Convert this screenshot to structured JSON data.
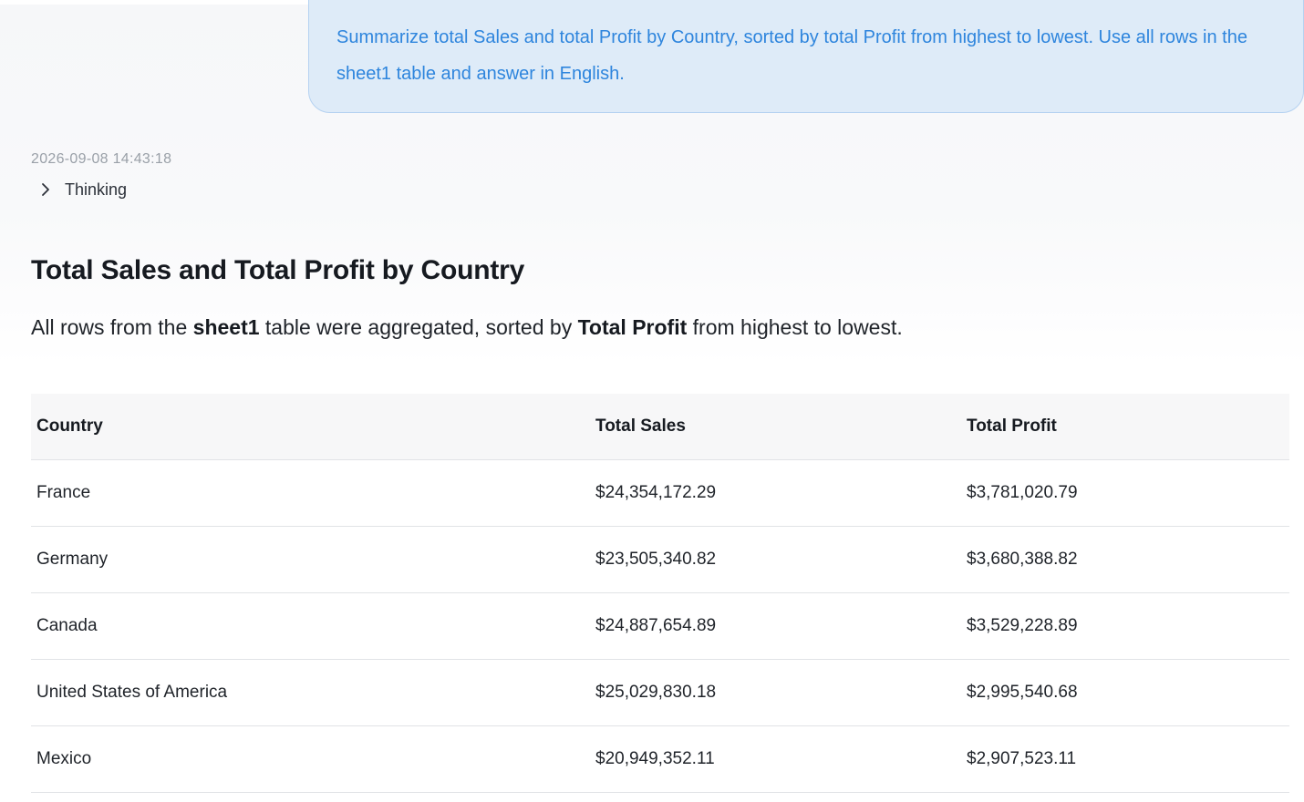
{
  "user_message": {
    "text": "Summarize total Sales and total Profit by Country, sorted by total Profit from highest to lowest. Use all rows in the sheet1 table and answer in English."
  },
  "response": {
    "timestamp": "2026-09-08 14:43:18",
    "thinking_label": "Thinking",
    "title": "Total Sales and Total Profit by Country",
    "summary": {
      "part1": "All rows from the ",
      "table_name": "sheet1",
      "part2": " table were aggregated, sorted by ",
      "sort_field": "Total Profit",
      "part3": " from highest to lowest."
    },
    "table": {
      "headers": [
        "Country",
        "Total Sales",
        "Total Profit"
      ],
      "rows": [
        [
          "France",
          "$24,354,172.29",
          "$3,781,020.79"
        ],
        [
          "Germany",
          "$23,505,340.82",
          "$3,680,388.82"
        ],
        [
          "Canada",
          "$24,887,654.89",
          "$3,529,228.89"
        ],
        [
          "United States of America",
          "$25,029,830.18",
          "$2,995,540.68"
        ],
        [
          "Mexico",
          "$20,949,352.11",
          "$2,907,523.11"
        ]
      ]
    }
  },
  "icons": {
    "thinking_toggle": "chevron-right-icon"
  },
  "colors": {
    "user_bubble_bg": "#deebf8",
    "user_bubble_text": "#2e85dd",
    "table_header_bg": "#f7f7f8"
  }
}
